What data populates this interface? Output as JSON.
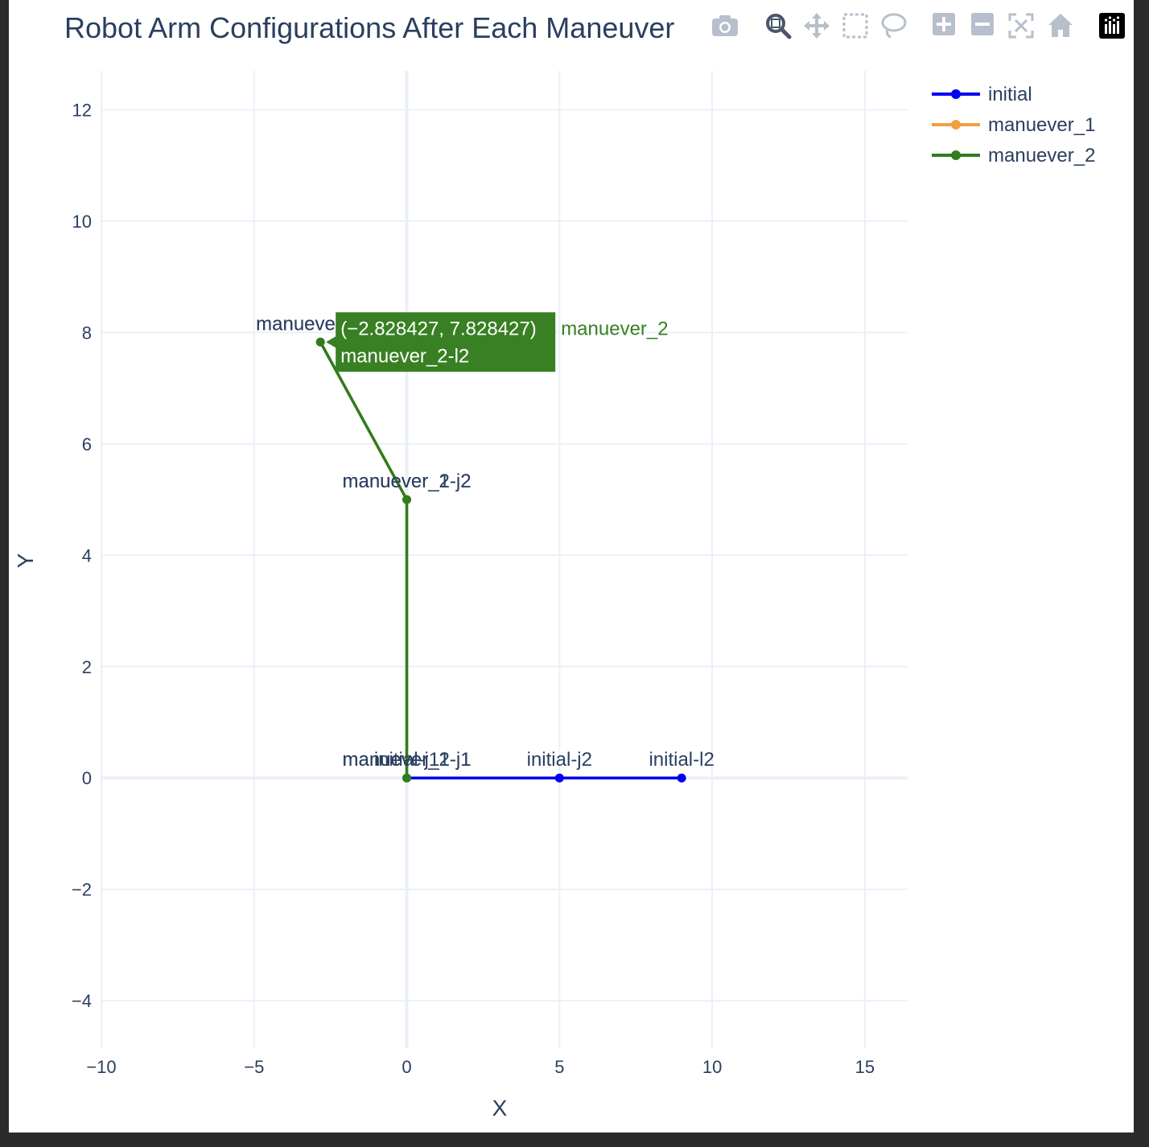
{
  "chart_data": {
    "type": "line",
    "title": "Robot Arm Configurations After Each Maneuver",
    "xlabel": "X",
    "ylabel": "Y",
    "xlim": [
      -10,
      16.4
    ],
    "ylim": [
      -4.85,
      12.7
    ],
    "xticks": [
      -10,
      -5,
      0,
      5,
      10,
      15
    ],
    "yticks": [
      -4,
      -2,
      0,
      2,
      4,
      6,
      8,
      10,
      12
    ],
    "xtick_labels": [
      "−10",
      "−5",
      "0",
      "5",
      "10",
      "15"
    ],
    "ytick_labels": [
      "−4",
      "−2",
      "0",
      "2",
      "4",
      "6",
      "8",
      "10",
      "12"
    ],
    "grid": true,
    "legend_position": "top-right",
    "series": [
      {
        "name": "initial",
        "color": "#0000ee",
        "x": [
          0,
          5,
          9
        ],
        "y": [
          0,
          0,
          0
        ],
        "labels": [
          "initial-j1",
          "initial-j2",
          "initial-l2"
        ]
      },
      {
        "name": "manuever_1",
        "color": "#f0a040",
        "x": [
          0,
          0,
          -2.828427
        ],
        "y": [
          0,
          5,
          7.828427
        ],
        "labels": [
          "manuever_1-j1",
          "manuever_1-j2",
          "manuever_1-l2"
        ]
      },
      {
        "name": "manuever_2",
        "color": "#2e7d1e",
        "x": [
          0,
          0,
          -2.828427
        ],
        "y": [
          0,
          5,
          7.828427
        ],
        "labels": [
          "manuever_2-j1",
          "manuever_2-j2",
          "manuever_2-l2"
        ]
      }
    ],
    "hover": {
      "coords": "(−2.828427, 7.828427)",
      "text": "manuever_2-l2",
      "name": "manuever_2",
      "color": "#388023"
    }
  },
  "modebar": {
    "icons": [
      "camera-icon",
      "zoom-icon",
      "pan-icon",
      "box-select-icon",
      "lasso-select-icon",
      "zoom-in-icon",
      "zoom-out-icon",
      "autoscale-icon",
      "reset-axes-icon",
      "plotly-logo-icon"
    ]
  }
}
